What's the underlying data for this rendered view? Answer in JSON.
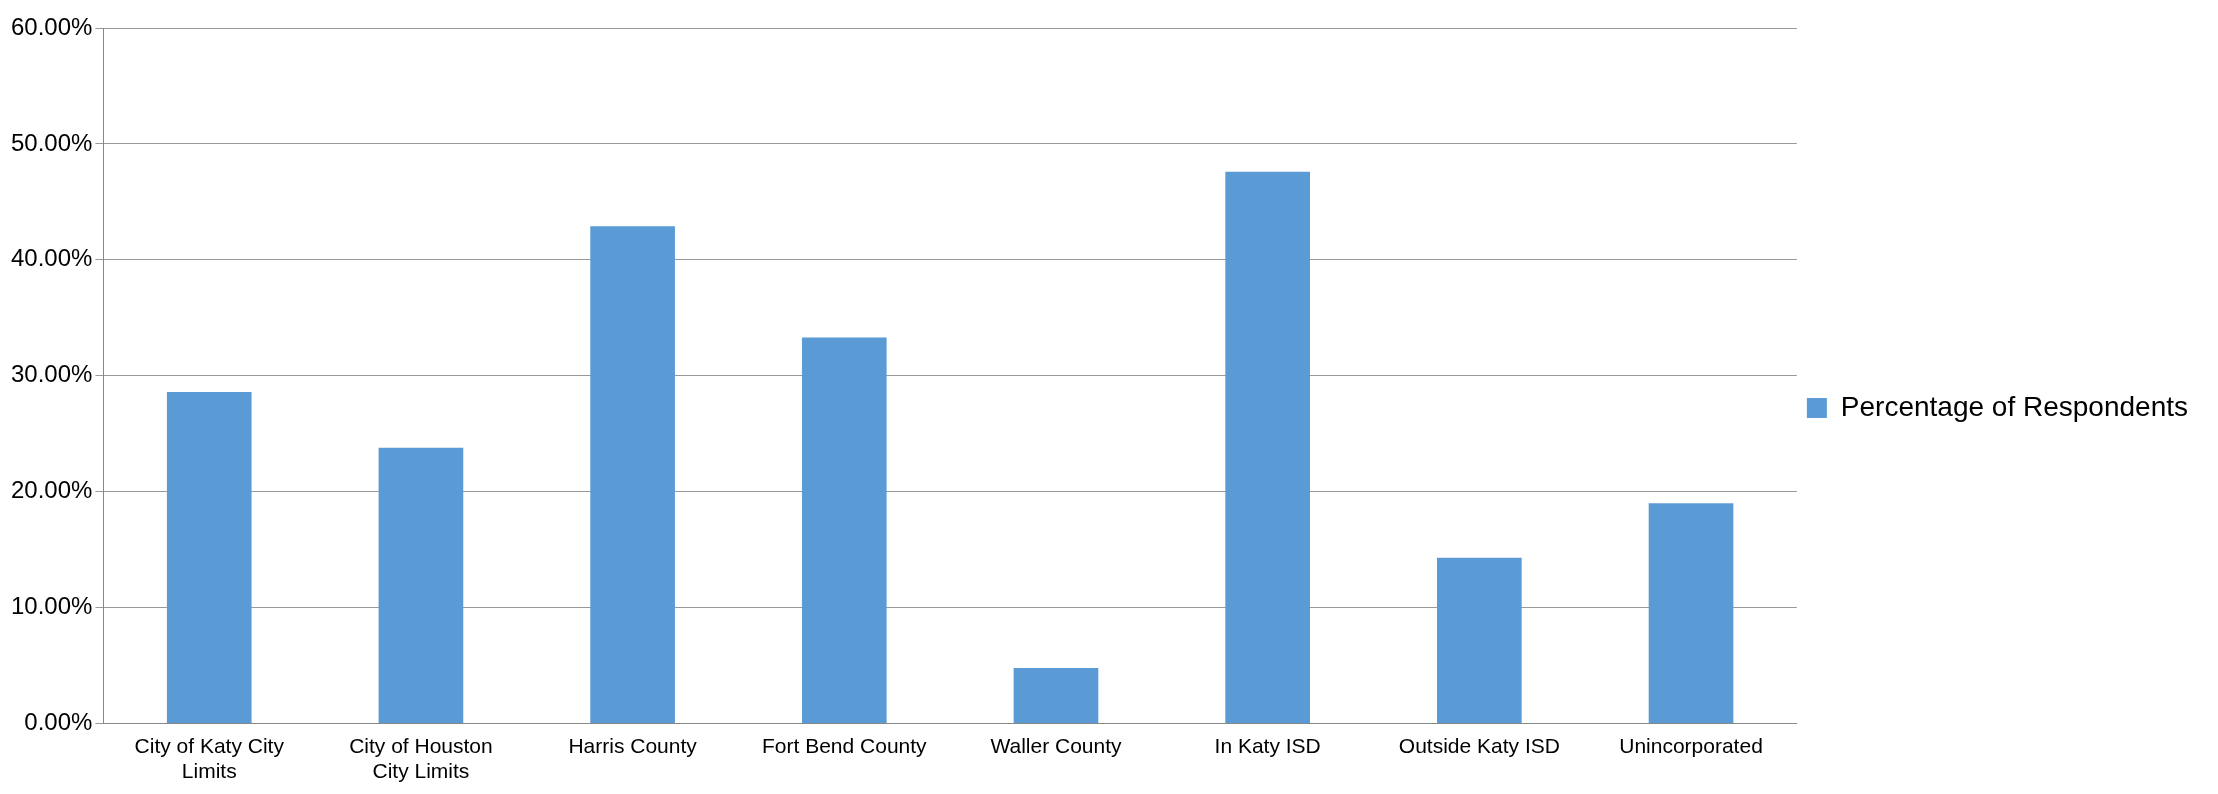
{
  "chart_data": {
    "type": "bar",
    "categories": [
      "City of Katy City Limits",
      "City of Houston City Limits",
      "Harris County",
      "Fort Bend County",
      "Waller County",
      "In Katy ISD",
      "Outside Katy ISD",
      "Unincorporated"
    ],
    "series": [
      {
        "name": "Percentage of Respondents",
        "color": "#5b9bd5",
        "values": [
          28.6,
          23.8,
          42.9,
          33.3,
          4.8,
          47.6,
          14.3,
          19.0
        ]
      }
    ],
    "ylim": [
      0,
      60
    ],
    "yticks": [
      {
        "value": 0,
        "label": "0.00%"
      },
      {
        "value": 10,
        "label": "10.00%"
      },
      {
        "value": 20,
        "label": "20.00%"
      },
      {
        "value": 30,
        "label": "30.00%"
      },
      {
        "value": 40,
        "label": "40.00%"
      },
      {
        "value": 50,
        "label": "50.00%"
      },
      {
        "value": 60,
        "label": "60.00%"
      }
    ],
    "grid": "y",
    "legend": "right"
  }
}
